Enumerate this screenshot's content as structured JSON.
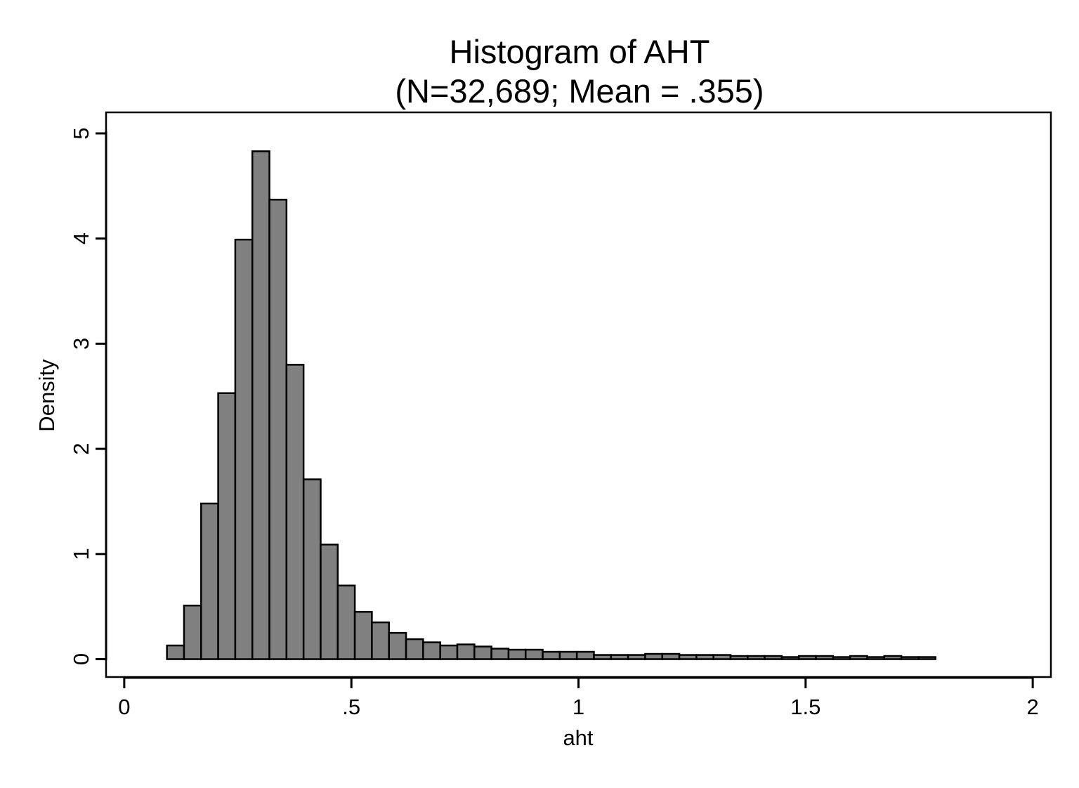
{
  "chart_data": {
    "type": "bar",
    "title": "Histogram of AHT",
    "subtitle": "(N=32,689; Mean = .355)",
    "xlabel": "aht",
    "ylabel": "Density",
    "xlim": [
      -0.04,
      2.04
    ],
    "ylim": [
      -0.17,
      5.2
    ],
    "x_ticks": [
      {
        "value": 0,
        "label": "0"
      },
      {
        "value": 0.5,
        "label": ".5"
      },
      {
        "value": 1,
        "label": "1"
      },
      {
        "value": 1.5,
        "label": "1.5"
      },
      {
        "value": 2,
        "label": "2"
      }
    ],
    "y_ticks": [
      {
        "value": 0,
        "label": "0"
      },
      {
        "value": 1,
        "label": "1"
      },
      {
        "value": 2,
        "label": "2"
      },
      {
        "value": 3,
        "label": "3"
      },
      {
        "value": 4,
        "label": "4"
      },
      {
        "value": 5,
        "label": "5"
      }
    ],
    "bin_start": 0.094,
    "bin_width": 0.0376,
    "values": [
      0.13,
      0.51,
      1.48,
      2.53,
      3.99,
      4.83,
      4.37,
      2.8,
      1.71,
      1.09,
      0.7,
      0.45,
      0.35,
      0.25,
      0.19,
      0.16,
      0.13,
      0.14,
      0.12,
      0.1,
      0.09,
      0.09,
      0.07,
      0.07,
      0.07,
      0.04,
      0.04,
      0.04,
      0.05,
      0.05,
      0.04,
      0.04,
      0.04,
      0.03,
      0.03,
      0.03,
      0.02,
      0.03,
      0.03,
      0.02,
      0.03,
      0.02,
      0.03,
      0.02,
      0.02
    ],
    "grid": false,
    "legend": "none",
    "colors": {
      "bar_fill": "#808080",
      "bar_stroke": "#000000",
      "axis": "#000000",
      "background": "#ffffff"
    }
  }
}
